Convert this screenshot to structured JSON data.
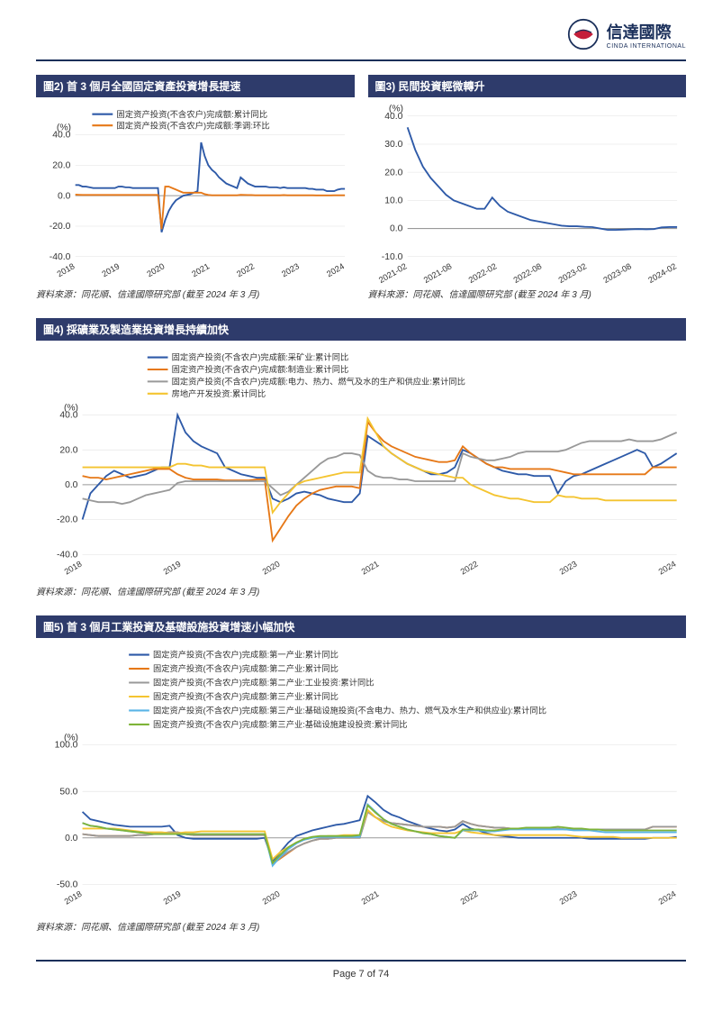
{
  "header": {
    "logo_cn": "信達國際",
    "logo_en": "CINDA INTERNATIONAL"
  },
  "chart2": {
    "title": "圖2) 首 3 個月全國固定資產投資增長提速",
    "unit": "(%)",
    "legend": [
      "固定资产投资(不含农户)完成额:累计同比",
      "固定资产投资(不含农户)完成额:季调:环比"
    ],
    "colors": [
      "#2e5aa8",
      "#e67817"
    ],
    "x_labels": [
      "2018",
      "2019",
      "2020",
      "2021",
      "2022",
      "2023",
      "2024"
    ],
    "y_labels": [
      "-40.0",
      "-20.0",
      "0.0",
      "20.0",
      "40.0"
    ],
    "ylim": [
      -40,
      40
    ],
    "series": [
      [
        7,
        7,
        6,
        6,
        5.5,
        5,
        5,
        5,
        5,
        5,
        5,
        5,
        6,
        6,
        5.5,
        5.5,
        5,
        5,
        5,
        5,
        5,
        5,
        5,
        5,
        -24,
        -16,
        -10,
        -6,
        -3,
        -1.5,
        0,
        0.5,
        1,
        2,
        3,
        35,
        26,
        20,
        17,
        15,
        12,
        10,
        8,
        7,
        6,
        5,
        12,
        10,
        8,
        7,
        6,
        6,
        6,
        6,
        5.5,
        5.5,
        5.5,
        5,
        5.5,
        5,
        5,
        5,
        5,
        5,
        5,
        4.5,
        4.5,
        4,
        4,
        4,
        3,
        3,
        3,
        4,
        4.5,
        4.5
      ],
      [
        0.7,
        0.6,
        0.5,
        0.5,
        0.5,
        0.5,
        0.5,
        0.5,
        0.5,
        0.5,
        0.5,
        0.5,
        0.5,
        0.5,
        0.5,
        0.5,
        0.5,
        0.5,
        0.5,
        0.5,
        0.5,
        0.5,
        0.5,
        0.5,
        -22,
        6,
        6,
        5,
        4,
        3,
        2,
        2,
        2,
        2,
        2,
        2,
        1,
        0.5,
        0.3,
        0.3,
        0.3,
        0.3,
        0.3,
        0.3,
        0.3,
        0.3,
        0.6,
        0.5,
        0.4,
        0.4,
        0.3,
        0.3,
        0.3,
        0.3,
        0.3,
        0.3,
        0.3,
        0.3,
        0.4,
        0.3,
        0.3,
        0.3,
        0.3,
        0.3,
        0.3,
        0.3,
        0.3,
        0.2,
        0.2,
        0.2,
        0.2,
        0.2,
        0.3,
        0.3,
        0.3,
        0.3
      ]
    ],
    "source": "資料來源：同花順、信達國際研究部 (截至 2024 年 3 月)"
  },
  "chart3": {
    "title": "圖3) 民間投資輕微轉升",
    "unit": "(%)",
    "x_labels": [
      "2021-02",
      "2021-08",
      "2022-02",
      "2022-08",
      "2023-02",
      "2023-08",
      "2024-02"
    ],
    "y_labels": [
      "-10.0",
      "0.0",
      "10.0",
      "20.0",
      "30.0",
      "40.0"
    ],
    "ylim": [
      -10,
      40
    ],
    "colors": [
      "#2e5aa8"
    ],
    "series": [
      [
        36,
        28,
        22,
        18,
        15,
        12,
        10,
        9,
        8,
        7,
        7,
        11,
        8,
        6,
        5,
        4,
        3,
        2.5,
        2,
        1.5,
        1,
        0.8,
        0.8,
        0.6,
        0.5,
        0,
        -0.5,
        -0.5,
        -0.4,
        -0.3,
        -0.2,
        -0.3,
        -0.2,
        0.4,
        0.5,
        0.5
      ]
    ],
    "source": "資料來源：同花順、信達國際研究部 (截至 2024 年 3 月)"
  },
  "chart4": {
    "title": "圖4) 採礦業及製造業投資增長持續加快",
    "unit": "(%)",
    "legend": [
      "固定资产投资(不含农户)完成额:采矿业:累计同比",
      "固定资产投资(不含农户)完成额:制造业:累计同比",
      "固定资产投资(不含农户)完成额:电力、热力、燃气及水的生产和供应业:累计同比",
      "房地产开发投资:累计同比"
    ],
    "colors": [
      "#2e5aa8",
      "#e67817",
      "#999999",
      "#f4c430"
    ],
    "x_labels": [
      "2018",
      "2019",
      "2020",
      "2021",
      "2022",
      "2023",
      "2024"
    ],
    "y_labels": [
      "-40.0",
      "-20.0",
      "0.0",
      "20.0",
      "40.0"
    ],
    "ylim": [
      -40,
      40
    ],
    "series": [
      [
        -20,
        -5,
        0,
        5,
        8,
        6,
        4,
        5,
        6,
        8,
        10,
        10,
        40,
        30,
        25,
        22,
        20,
        18,
        10,
        8,
        6,
        5,
        4,
        4,
        -8,
        -10,
        -8,
        -5,
        -4,
        -5,
        -6,
        -8,
        -9,
        -10,
        -10,
        -5,
        28,
        25,
        22,
        18,
        15,
        12,
        10,
        8,
        6,
        6,
        7,
        10,
        20,
        18,
        15,
        12,
        10,
        8,
        7,
        6,
        6,
        5,
        5,
        5,
        -5,
        2,
        5,
        6,
        8,
        10,
        12,
        14,
        16,
        18,
        20,
        18,
        10,
        12,
        15,
        18
      ],
      [
        5,
        4,
        4,
        3,
        4,
        5,
        6,
        7,
        8,
        9,
        9,
        9,
        6,
        4,
        3,
        3,
        3,
        3,
        2.5,
        2.5,
        2.5,
        2.5,
        3,
        3,
        -32,
        -25,
        -18,
        -12,
        -8,
        -5,
        -3,
        -2,
        -1,
        -1,
        -1,
        -2,
        36,
        30,
        25,
        22,
        20,
        18,
        16,
        15,
        14,
        13,
        13,
        14,
        22,
        18,
        15,
        12,
        10,
        10,
        9,
        9,
        9,
        9,
        9,
        9,
        8,
        7,
        6,
        6,
        6,
        6,
        6,
        6,
        6,
        6,
        6,
        6,
        10,
        10,
        10,
        10
      ],
      [
        -8,
        -9,
        -10,
        -10,
        -10,
        -11,
        -10,
        -8,
        -6,
        -5,
        -4,
        -3,
        1,
        2,
        2,
        2,
        2,
        2,
        2,
        2,
        2,
        2,
        2,
        2,
        -2,
        -6,
        -4,
        0,
        4,
        8,
        12,
        15,
        16,
        18,
        18,
        17,
        8,
        5,
        4,
        4,
        3,
        3,
        2,
        2,
        2,
        2,
        2,
        2,
        18,
        16,
        15,
        14,
        14,
        15,
        16,
        18,
        19,
        19,
        19,
        19,
        19,
        20,
        22,
        24,
        25,
        25,
        25,
        25,
        25,
        26,
        25,
        25,
        25,
        26,
        28,
        30
      ],
      [
        10,
        10,
        10,
        10,
        10,
        10,
        10,
        10,
        10,
        10,
        10,
        10,
        12,
        12,
        11,
        11,
        10,
        10,
        10,
        10,
        10,
        10,
        10,
        10,
        -16,
        -10,
        -5,
        0,
        2,
        3,
        4,
        5,
        6,
        7,
        7,
        7,
        38,
        30,
        22,
        18,
        15,
        12,
        10,
        8,
        7,
        6,
        5,
        4,
        4,
        0,
        -2,
        -4,
        -6,
        -7,
        -8,
        -8,
        -9,
        -10,
        -10,
        -10,
        -6,
        -7,
        -7,
        -8,
        -8,
        -8,
        -9,
        -9,
        -9,
        -9,
        -9,
        -9,
        -9,
        -9,
        -9,
        -9
      ]
    ],
    "source": "資料來源：同花順、信達國際研究部 (截至 2024 年 3 月)"
  },
  "chart5": {
    "title": "圖5) 首 3 個月工業投資及基礎設施投資增速小幅加快",
    "unit": "(%)",
    "legend": [
      "固定资产投资(不含农户)完成额:第一产业:累计同比",
      "固定资产投资(不含农户)完成额:第二产业:累计同比",
      "固定资产投资(不含农户)完成额:第二产业:工业投资:累计同比",
      "固定资产投资(不含农户)完成额:第三产业:累计同比",
      "固定资产投资(不含农户)完成额:第三产业:基础设施投资(不含电力、热力、燃气及水生产和供应业):累计同比",
      "固定资产投资(不含农户)完成额:第三产业:基础设施建设投资:累计同比"
    ],
    "colors": [
      "#2e5aa8",
      "#e67817",
      "#999999",
      "#f4c430",
      "#5ab4e6",
      "#7eb338"
    ],
    "x_labels": [
      "2018",
      "2019",
      "2020",
      "2021",
      "2022",
      "2023",
      "2024"
    ],
    "y_labels": [
      "-50.0",
      "0.0",
      "50.0",
      "100.0"
    ],
    "ylim": [
      -50,
      100
    ],
    "series": [
      [
        28,
        20,
        18,
        16,
        14,
        13,
        12,
        12,
        12,
        12,
        12,
        13,
        3,
        0,
        -1,
        -1,
        -1,
        -1,
        -1,
        -1,
        -1,
        -1,
        -1,
        0,
        -25,
        -15,
        -5,
        2,
        5,
        8,
        10,
        12,
        14,
        15,
        17,
        19,
        45,
        38,
        30,
        25,
        22,
        18,
        15,
        12,
        10,
        8,
        7,
        9,
        15,
        10,
        8,
        5,
        3,
        2,
        1,
        0,
        0,
        0,
        0,
        0,
        0,
        0,
        0,
        0,
        -1,
        -1,
        -1,
        -1,
        -1,
        -1,
        -1,
        -1,
        0,
        0,
        0,
        1
      ],
      [
        4,
        3,
        2,
        2,
        2,
        2,
        2,
        3,
        3,
        4,
        5,
        6,
        6,
        4,
        3,
        3,
        3,
        3,
        3,
        3,
        3,
        3,
        3,
        3,
        -28,
        -22,
        -16,
        -10,
        -6,
        -3,
        -1,
        -1,
        0,
        0,
        0,
        0,
        28,
        22,
        18,
        16,
        15,
        14,
        13,
        12,
        12,
        12,
        11,
        12,
        18,
        15,
        13,
        12,
        11,
        11,
        10,
        10,
        10,
        10,
        10,
        10,
        10,
        9,
        9,
        9,
        9,
        9,
        9,
        9,
        9,
        9,
        9,
        9,
        12,
        12,
        12,
        12
      ],
      [
        4,
        3,
        2,
        2,
        2,
        2,
        2,
        3,
        3,
        4,
        5,
        6,
        6,
        4,
        3,
        3,
        3,
        3,
        3,
        3,
        3,
        3,
        3,
        3,
        -27,
        -21,
        -15,
        -10,
        -6,
        -3,
        -1,
        -1,
        0,
        0,
        0,
        0,
        28,
        22,
        18,
        16,
        15,
        14,
        13,
        12,
        12,
        12,
        11,
        12,
        18,
        15,
        13,
        12,
        11,
        11,
        10,
        10,
        10,
        10,
        10,
        10,
        10,
        9,
        9,
        9,
        9,
        9,
        9,
        9,
        9,
        9,
        9,
        9,
        12,
        12,
        12,
        12
      ],
      [
        10,
        10,
        10,
        10,
        10,
        9,
        8,
        7,
        6,
        6,
        6,
        5,
        5,
        6,
        6,
        7,
        7,
        7,
        7,
        7,
        7,
        7,
        7,
        7,
        -23,
        -15,
        -10,
        -5,
        -2,
        0,
        1,
        2,
        2,
        3,
        3,
        3,
        30,
        22,
        16,
        12,
        10,
        8,
        7,
        6,
        5,
        5,
        5,
        5,
        8,
        6,
        5,
        4,
        3,
        3,
        3,
        3,
        3,
        3,
        3,
        3,
        3,
        3,
        2,
        1,
        1,
        1,
        1,
        1,
        0,
        0,
        0,
        0,
        0,
        0,
        0,
        0
      ],
      [
        16,
        13,
        12,
        10,
        9,
        8,
        7,
        6,
        5,
        4,
        4,
        4,
        4,
        4,
        4,
        4,
        4,
        4,
        4,
        4,
        4,
        4,
        4,
        4,
        -30,
        -20,
        -12,
        -6,
        -2,
        0,
        1,
        1,
        1,
        1,
        1,
        1,
        36,
        28,
        20,
        15,
        12,
        9,
        7,
        5,
        4,
        2,
        1,
        0,
        8,
        8,
        8,
        7,
        7,
        8,
        9,
        9,
        9,
        9,
        9,
        9,
        9,
        9,
        8,
        8,
        8,
        7,
        6,
        6,
        6,
        6,
        6,
        6,
        6,
        6,
        6,
        6
      ],
      [
        16,
        13,
        12,
        10,
        9,
        8,
        7,
        6,
        5,
        4,
        4,
        4,
        4,
        4,
        4,
        4,
        4,
        4,
        4,
        4,
        4,
        4,
        4,
        4,
        -27,
        -18,
        -10,
        -5,
        -1,
        1,
        2,
        2,
        2,
        2,
        2,
        3,
        35,
        27,
        20,
        15,
        12,
        9,
        7,
        5,
        4,
        2,
        1,
        0,
        9,
        9,
        9,
        8,
        8,
        9,
        10,
        10,
        11,
        11,
        11,
        11,
        12,
        11,
        10,
        10,
        9,
        9,
        8,
        8,
        8,
        8,
        8,
        8,
        8,
        8,
        8,
        8
      ]
    ],
    "source": "資料來源：同花順、信達國際研究部 (截至 2024 年 3 月)"
  },
  "footer": {
    "page_text": "Page 7 of 74"
  }
}
